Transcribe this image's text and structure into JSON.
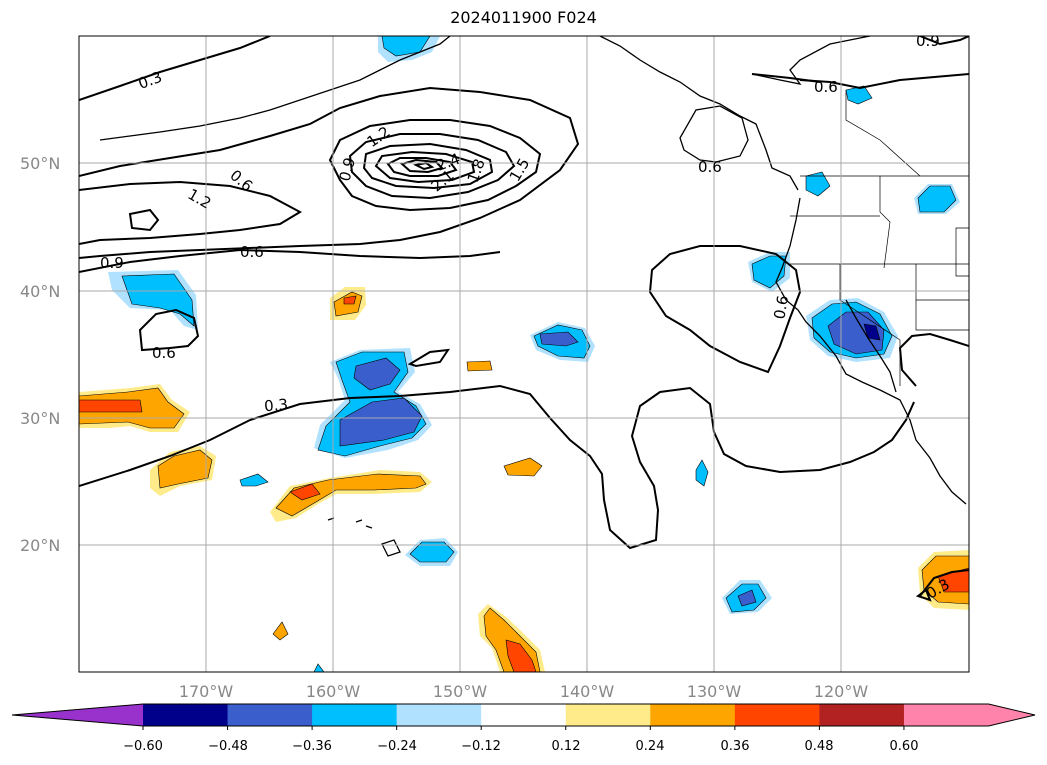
{
  "title": "2024011900 F024",
  "chart_data": {
    "type": "map",
    "title": "2024011900 F024",
    "lat_labels": [
      "20°N",
      "30°N",
      "40°N",
      "50°N"
    ],
    "lon_labels": [
      "170°W",
      "160°W",
      "150°W",
      "140°W",
      "130°W",
      "120°W"
    ],
    "contour_labels": [
      "0.3",
      "0.9",
      "0.6",
      "1.2",
      "0.9",
      "0.6",
      "0.9",
      "1.2",
      "2.4",
      "2.1",
      "1.8",
      "1.5",
      "0.6",
      "0.6",
      "0.6",
      "0.3",
      "0.3",
      "0.6",
      "0.9",
      "0.6"
    ],
    "colorbar": {
      "ticks": [
        "−0.60",
        "−0.48",
        "−0.36",
        "−0.24",
        "−0.12",
        "0.12",
        "0.24",
        "0.36",
        "0.48",
        "0.60"
      ],
      "colors": [
        "#9932cc",
        "#00008b",
        "#3a5fcd",
        "#00bfff",
        "#b0e2ff",
        "#ffffff",
        "#ffeb8a",
        "#ffa500",
        "#ff4500",
        "#b22222",
        "#ff83aa",
        "#ff83aa"
      ],
      "extend": "both"
    },
    "grid": true
  }
}
